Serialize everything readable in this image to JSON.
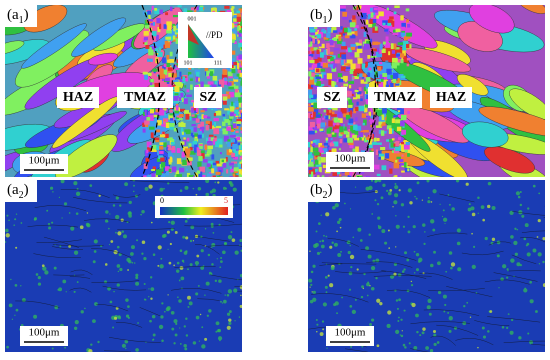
{
  "panels": [
    {
      "label": {
        "open": "(a",
        "sub": "1",
        "close": ")"
      },
      "zones": [
        "HAZ",
        "TMAZ",
        "SZ"
      ],
      "scale_bar": "100μm",
      "legend": {
        "title": "//PD",
        "top": "001",
        "left": "101",
        "right": "111"
      }
    },
    {
      "label": {
        "open": "(b",
        "sub": "1",
        "close": ")"
      },
      "zones": [
        "SZ",
        "TMAZ",
        "HAZ"
      ],
      "scale_bar": "100μm"
    },
    {
      "label": {
        "open": "(a",
        "sub": "2",
        "close": ")"
      },
      "scale_bar": "100μm",
      "legend": {
        "min": 0,
        "max": 5
      }
    },
    {
      "label": {
        "open": "(b",
        "sub": "2",
        "close": ")"
      },
      "scale_bar": "100μm"
    }
  ]
}
